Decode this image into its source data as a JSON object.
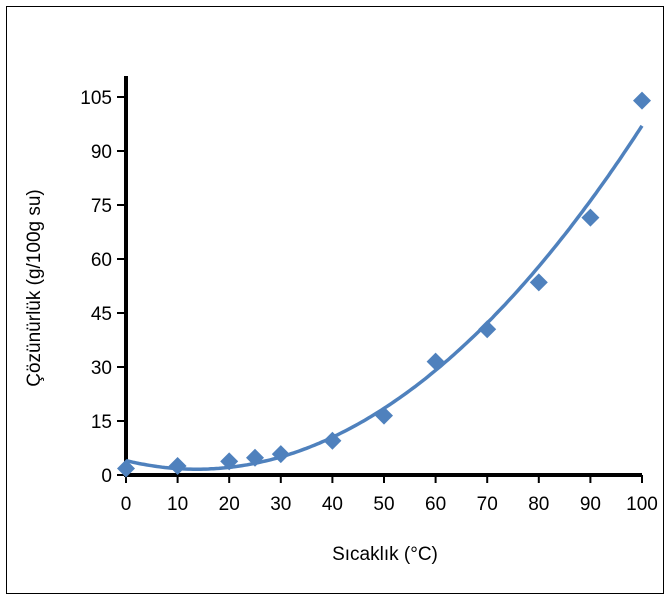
{
  "chart_data": {
    "type": "scatter",
    "xlabel": "Sıcaklık (°C)",
    "ylabel": "Çözünürlük (g/100g su)",
    "xlim": [
      0,
      100
    ],
    "ylim": [
      0,
      105
    ],
    "x_ticks": [
      0,
      10,
      20,
      30,
      40,
      50,
      60,
      70,
      80,
      90,
      100
    ],
    "y_ticks": [
      0,
      15,
      30,
      45,
      60,
      75,
      90,
      105
    ],
    "grid": false,
    "series": [
      {
        "marker": "diamond",
        "color": "#4f81bd",
        "x": [
          0,
          10,
          20,
          25,
          30,
          40,
          50,
          60,
          70,
          80,
          90,
          100
        ],
        "y": [
          1.8,
          2.5,
          3.8,
          4.8,
          5.8,
          9.5,
          16.5,
          31.5,
          40.5,
          53.5,
          71.5,
          104
        ]
      }
    ],
    "trendline": {
      "type": "polynomial",
      "color": "#4f81bd",
      "coefficients": [
        4.0,
        -0.35,
        0.0128
      ]
    }
  }
}
